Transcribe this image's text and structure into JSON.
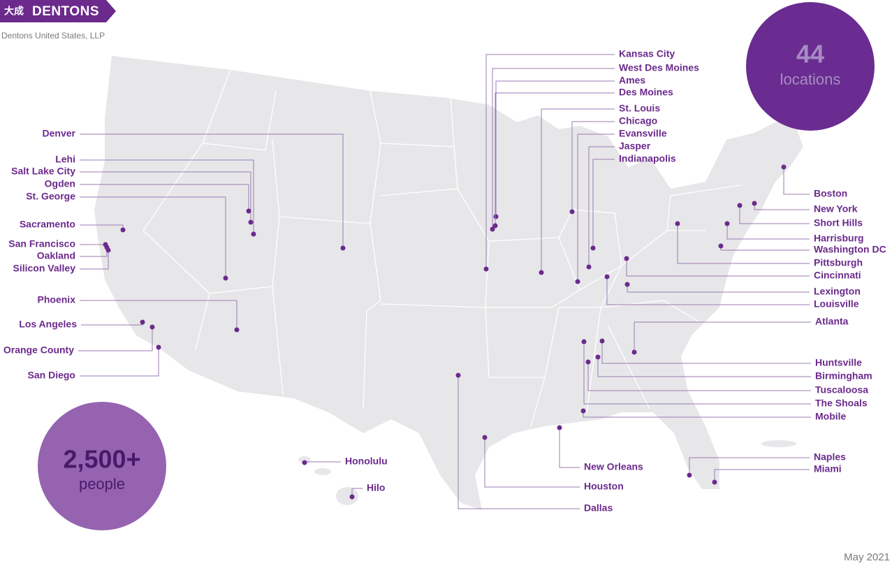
{
  "header": {
    "logo_mark": "大成",
    "logo": "DENTONS",
    "subtitle": "Dentons United States, LLP"
  },
  "stats": [
    {
      "value": "44",
      "label": "locations"
    },
    {
      "value": "2,500+",
      "label": "people"
    }
  ],
  "locations": [
    "Denver",
    "Lehi",
    "Salt Lake City",
    "Ogden",
    "St. George",
    "Sacramento",
    "San Francisco",
    "Oakland",
    "Silicon Valley",
    "Phoenix",
    "Los Angeles",
    "Orange County",
    "San Diego",
    "Honolulu",
    "Hilo",
    "Kansas City",
    "West Des Moines",
    "Ames",
    "Des Moines",
    "St. Louis",
    "Chicago",
    "Evansville",
    "Jasper",
    "Indianapolis",
    "Boston",
    "New York",
    "Short Hills",
    "Harrisburg",
    "Washington DC",
    "Pittsburgh",
    "Cincinnati",
    "Lexington",
    "Louisville",
    "Atlanta",
    "Huntsville",
    "Birmingham",
    "Tuscaloosa",
    "The Shoals",
    "Mobile",
    "Naples",
    "Miami",
    "New Orleans",
    "Houston",
    "Dallas"
  ],
  "footer": {
    "date": "May 2021"
  }
}
